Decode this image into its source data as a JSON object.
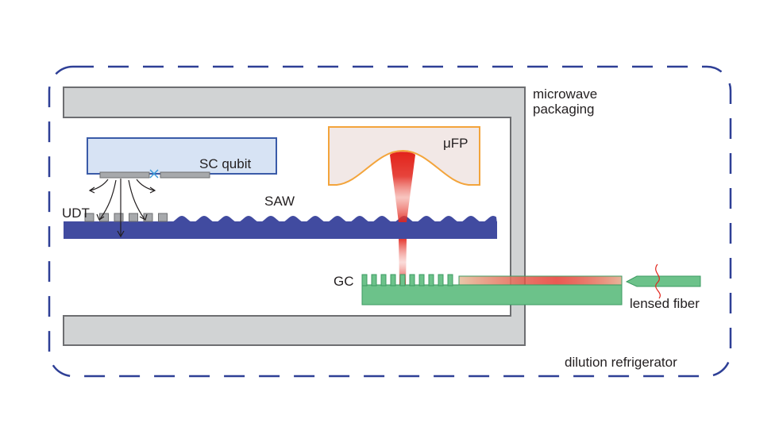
{
  "labels": {
    "microwave_packaging_line1": "microwave",
    "microwave_packaging_line2": "packaging",
    "sc_qubit": "SC qubit",
    "udt": "UDT",
    "saw": "SAW",
    "ufp": "μFP",
    "gc": "GC",
    "lensed_fiber": "lensed fiber",
    "dilution_refrigerator": "dilution refrigerator"
  },
  "colors": {
    "dilution_boundary": "#2e3f96",
    "packaging_fill": "#d1d3d4",
    "packaging_stroke": "#6d6e71",
    "qubit_fill": "#d7e3f4",
    "qubit_stroke": "#3a5ba8",
    "substrate": "#414ba0",
    "mirror_stroke": "#f3a43b",
    "mirror_fill": "#f2e8e6",
    "laser": "#e2231a",
    "waveguide": "#6cc28a",
    "pads": "#a7a9ac"
  }
}
